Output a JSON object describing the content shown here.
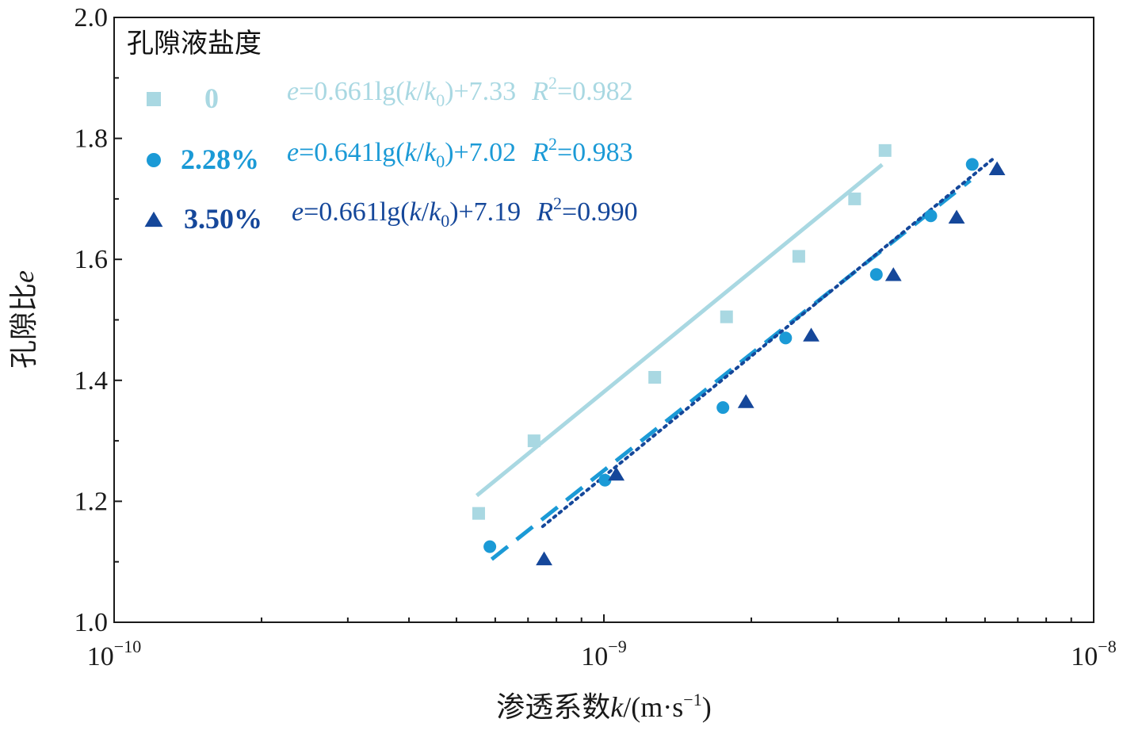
{
  "chart_data": {
    "type": "scatter",
    "title": "",
    "xlabel": {
      "main": "渗透系数",
      "var": "k",
      "unit_open": "/(m·s",
      "exp": "−1",
      "unit_close": ")"
    },
    "ylabel": {
      "main": "孔隙比",
      "var": "e"
    },
    "xscale": "log",
    "xlim": [
      1e-10,
      1e-08
    ],
    "ylim": [
      1.0,
      2.0
    ],
    "x_ticks": [
      {
        "value": 1e-10,
        "base": "10",
        "exp": "−10"
      },
      {
        "value": 1e-09,
        "base": "10",
        "exp": "−9"
      },
      {
        "value": 1e-08,
        "base": "10",
        "exp": "−8"
      }
    ],
    "y_ticks": [
      {
        "value": 1.0,
        "label": "1.0"
      },
      {
        "value": 1.2,
        "label": "1.2"
      },
      {
        "value": 1.4,
        "label": "1.4"
      },
      {
        "value": 1.6,
        "label": "1.6"
      },
      {
        "value": 1.8,
        "label": "1.8"
      },
      {
        "value": 2.0,
        "label": "2.0"
      }
    ],
    "grid": false,
    "legend": {
      "title": "孔隙液盐度",
      "position": "top-left"
    },
    "series": [
      {
        "name": "0",
        "marker": "square",
        "line_style": "solid",
        "color": "#a9d8e2",
        "fit": {
          "slope": 0.661,
          "intercept": 7.33,
          "x_range": [
            5.5e-10,
            3.7e-09
          ]
        },
        "equation": {
          "lhs": "e",
          "mid": "=0.661lg(",
          "k": "k",
          "slash": "/",
          "k0": "k",
          "sub": "0",
          "rest": ")+7.33",
          "r": "R",
          "r_exp": "2",
          "r_val": "=0.982"
        },
        "points": [
          {
            "x": 5.55e-10,
            "y": 1.18
          },
          {
            "x": 7.2e-10,
            "y": 1.3
          },
          {
            "x": 1.27e-09,
            "y": 1.405
          },
          {
            "x": 1.78e-09,
            "y": 1.505
          },
          {
            "x": 2.5e-09,
            "y": 1.605
          },
          {
            "x": 3.25e-09,
            "y": 1.7
          },
          {
            "x": 3.75e-09,
            "y": 1.78
          }
        ]
      },
      {
        "name": "2.28%",
        "marker": "circle",
        "line_style": "dashed",
        "color": "#1b9ad6",
        "fit": {
          "slope": 0.641,
          "intercept": 7.02,
          "x_range": [
            5.9e-10,
            5.6e-09
          ]
        },
        "equation": {
          "lhs": "e",
          "mid": "=0.641lg(",
          "k": "k",
          "slash": "/",
          "k0": "k",
          "sub": "0",
          "rest": ")+7.02",
          "r": "R",
          "r_exp": "2",
          "r_val": "=0.983"
        },
        "points": [
          {
            "x": 5.85e-10,
            "y": 1.125
          },
          {
            "x": 1.005e-09,
            "y": 1.235
          },
          {
            "x": 1.75e-09,
            "y": 1.355
          },
          {
            "x": 2.35e-09,
            "y": 1.47
          },
          {
            "x": 3.6e-09,
            "y": 1.575
          },
          {
            "x": 4.65e-09,
            "y": 1.672
          },
          {
            "x": 5.65e-09,
            "y": 1.757
          }
        ]
      },
      {
        "name": "3.50%",
        "marker": "triangle",
        "line_style": "dotted",
        "color": "#15479a",
        "fit": {
          "slope": 0.661,
          "intercept": 7.19,
          "x_range": [
            7.5e-10,
            6.3e-09
          ]
        },
        "equation": {
          "lhs": "e",
          "mid": "=0.661lg(",
          "k": "k",
          "slash": "/",
          "k0": "k",
          "sub": "0",
          "rest": ")+7.19",
          "r": "R",
          "r_exp": "2",
          "r_val": "=0.990"
        },
        "points": [
          {
            "x": 7.55e-10,
            "y": 1.105
          },
          {
            "x": 1.06e-09,
            "y": 1.245
          },
          {
            "x": 1.95e-09,
            "y": 1.365
          },
          {
            "x": 2.65e-09,
            "y": 1.475
          },
          {
            "x": 3.9e-09,
            "y": 1.575
          },
          {
            "x": 5.25e-09,
            "y": 1.67
          },
          {
            "x": 6.35e-09,
            "y": 1.75
          }
        ]
      }
    ]
  }
}
